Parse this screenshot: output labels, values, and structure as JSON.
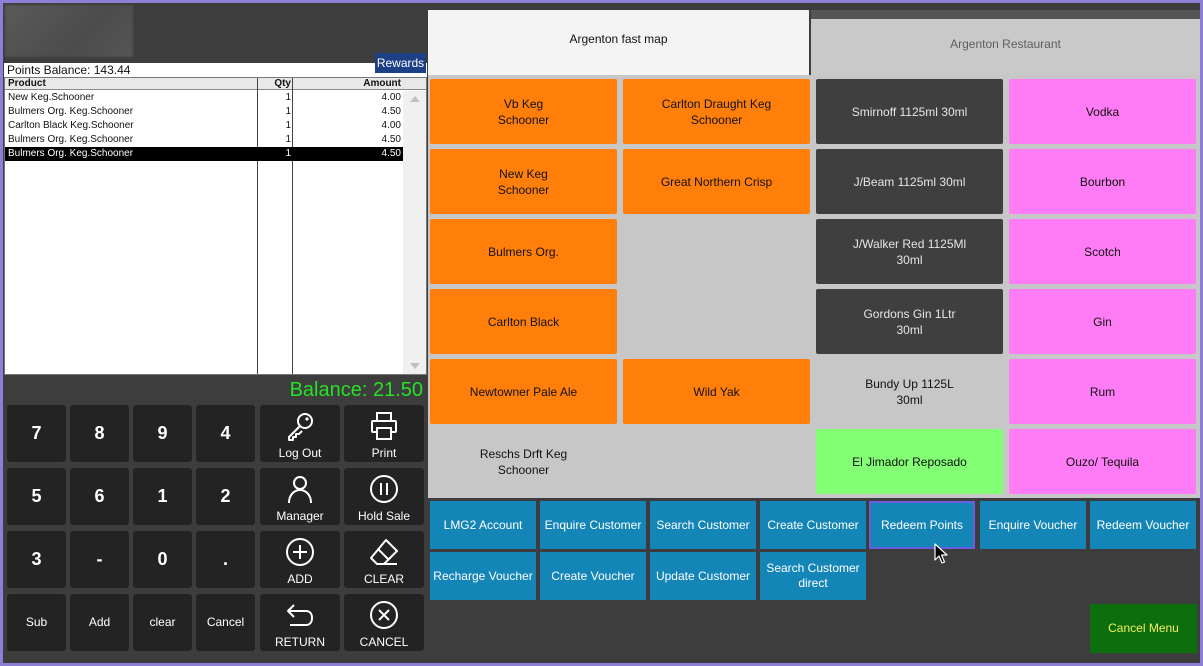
{
  "left": {
    "points_balance": "Points Balance: 143.44",
    "rewards_label": "Rewards",
    "grid": {
      "headers": {
        "product": "Product",
        "qty": "Qty",
        "amount": "Amount"
      },
      "rows": [
        {
          "product": "New Keg.Schooner",
          "qty": "1",
          "amount": "4.00"
        },
        {
          "product": "Bulmers Org.  Keg.Schooner",
          "qty": "1",
          "amount": "4.50"
        },
        {
          "product": "Carlton Black Keg.Schooner",
          "qty": "1",
          "amount": "4.00"
        },
        {
          "product": "Bulmers Org.  Keg.Schooner",
          "qty": "1",
          "amount": "4.50"
        },
        {
          "product": "Bulmers Org.  Keg.Schooner",
          "qty": "1",
          "amount": "4.50"
        }
      ],
      "selected_row": 4
    },
    "balance": "Balance: 21.50",
    "keypad": {
      "k7": "7",
      "k8": "8",
      "k9": "9",
      "k4": "4",
      "k5": "5",
      "k6": "6",
      "k1": "1",
      "k2": "2",
      "k3": "3",
      "kminus": "-",
      "k0": "0",
      "kdot": ".",
      "sub": "Sub",
      "add": "Add",
      "clear": "clear",
      "cancel": "Cancel"
    },
    "functions": {
      "logout": "Log Out",
      "print": "Print",
      "manager": "Manager",
      "hold_sale": "Hold Sale",
      "add": "ADD",
      "clear": "CLEAR",
      "return": "RETURN",
      "cancel": "CANCEL"
    }
  },
  "tabs": {
    "tab1": "Argenton fast map",
    "tab2": "Argenton Restaurant"
  },
  "tiles": {
    "c1": [
      "Vb Keg\nSchooner",
      "New Keg\nSchooner",
      "Bulmers Org.",
      "Carlton Black",
      "Newtowner Pale Ale",
      "Reschs Drft Keg\nSchooner"
    ],
    "c2": [
      "Carlton Draught Keg\nSchooner",
      "Great Northern Crisp",
      "Wild Yak"
    ],
    "c3": [
      "Smirnoff 1125ml 30ml",
      "J/Beam 1125ml 30ml",
      "J/Walker Red 1125Ml\n30ml",
      "Gordons Gin 1Ltr\n30ml",
      "Bundy Up 1125L\n30ml",
      "El Jimador Reposado"
    ],
    "c4": [
      "Vodka",
      "Bourbon",
      "Scotch",
      "Gin",
      "Rum",
      "Ouzo/ Tequila"
    ]
  },
  "colors": {
    "orange": "#ff7f0a",
    "dark": "#3f3f3f",
    "pink": "#ff7cf6",
    "green": "#82ff75",
    "action_blue": "#1485b7",
    "balance_green": "#27e027"
  },
  "actions": {
    "lmg2": "LMG2 Account",
    "enquire_customer": "Enquire Customer",
    "search_customer": "Search Customer",
    "create_customer": "Create Customer",
    "redeem_points": "Redeem Points",
    "enquire_voucher": "Enquire Voucher",
    "redeem_voucher": "Redeem Voucher",
    "recharge_voucher": "Recharge Voucher",
    "create_voucher": "Create Voucher",
    "update_customer": "Update Customer",
    "search_customer_direct": "Search Customer\ndirect",
    "cancel_menu": "Cancel Menu"
  }
}
